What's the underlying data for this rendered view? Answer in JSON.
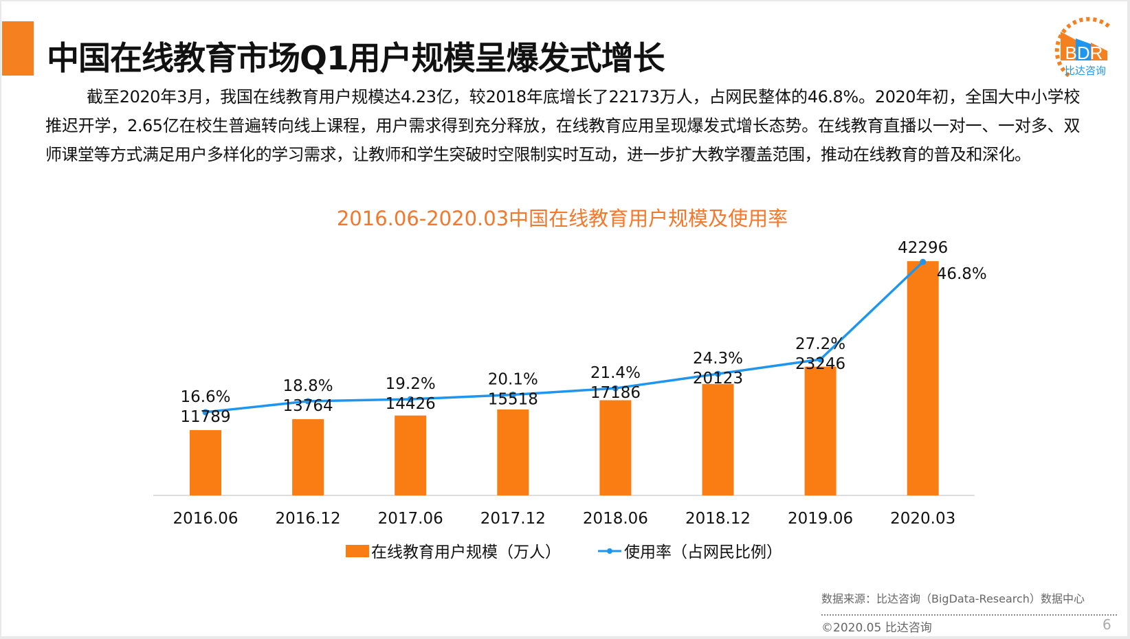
{
  "header": {
    "title": "中国在线教育市场Q1用户规模呈爆发式增长",
    "logo_text": "BDR",
    "logo_subtext": "比达咨询"
  },
  "paragraph": "截至2020年3月，我国在线教育用户规模达4.23亿，较2018年底增长了22173万人，占网民整体的46.8%。2020年初，全国大中小学校推迟开学，2.65亿在校生普遍转向线上课程，用户需求得到充分释放，在线教育应用呈现爆发式增长态势。在线教育直播以一对一、一对多、双师课堂等方式满足用户多样化的学习需求，让教师和学生突破时空限制实时互动，进一步扩大教学覆盖范围，推动在线教育的普及和深化。",
  "chart_data": {
    "type": "bar+line",
    "title": "2016.06-2020.03中国在线教育用户规模及使用率",
    "categories": [
      "2016.06",
      "2016.12",
      "2017.06",
      "2017.12",
      "2018.06",
      "2018.12",
      "2019.06",
      "2020.03"
    ],
    "series": [
      {
        "name": "在线教育用户规模（万人）",
        "type": "bar",
        "color": "#fa7d14",
        "values": [
          11789,
          13764,
          14426,
          15518,
          17186,
          20123,
          23246,
          42296
        ]
      },
      {
        "name": "使用率（占网民比例）",
        "type": "line",
        "color": "#1e96f0",
        "values": [
          16.6,
          18.8,
          19.2,
          20.1,
          21.4,
          24.3,
          27.2,
          46.8
        ],
        "labels": [
          "16.6%",
          "18.8%",
          "19.2%",
          "20.1%",
          "21.4%",
          "24.3%",
          "27.2%",
          "46.8%"
        ]
      }
    ],
    "legend": "bottom",
    "grid": false
  },
  "footer": {
    "source": "数据来源：比达咨询（BigData-Research）数据中心",
    "copyright": "©2020.05 比达咨询",
    "page": "6"
  },
  "colors": {
    "accent": "#f5801f",
    "title": "#f5772a",
    "bar": "#fa7d14",
    "line": "#1e96f0"
  }
}
